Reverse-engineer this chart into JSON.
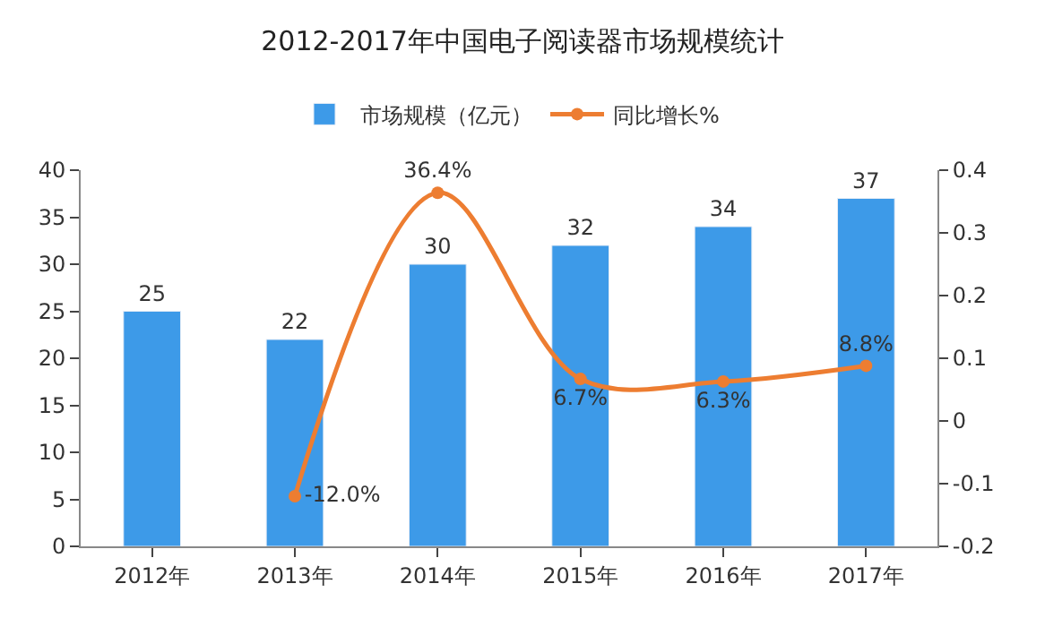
{
  "chart_data": {
    "type": "bar",
    "title": "2012-2017年中国电子阅读器市场规模统计",
    "categories": [
      "2012年",
      "2013年",
      "2014年",
      "2015年",
      "2016年",
      "2017年"
    ],
    "series": [
      {
        "name": "市场规模（亿元）",
        "color": "#3d9ae8",
        "values": [
          25,
          22,
          30,
          32,
          34,
          37
        ],
        "data_labels": true
      },
      {
        "name": "同比增长%",
        "type": "line",
        "axis": "y2",
        "color": "#ed7d31",
        "values": [
          null,
          -0.12,
          0.364,
          0.067,
          0.063,
          0.088
        ],
        "value_labels": [
          null,
          "-12.0%",
          "36.4%",
          "6.7%",
          "6.3%",
          "8.8%"
        ],
        "marker": "circle"
      }
    ],
    "ylim": [
      0,
      40
    ],
    "yticks": [
      0,
      5,
      10,
      15,
      20,
      25,
      30,
      35,
      40
    ],
    "y2lim": [
      -0.2,
      0.4
    ],
    "y2ticks": [
      -0.2,
      -0.1,
      0,
      0.1,
      0.2,
      0.3,
      0.4
    ],
    "grid": false,
    "legend": "top"
  }
}
